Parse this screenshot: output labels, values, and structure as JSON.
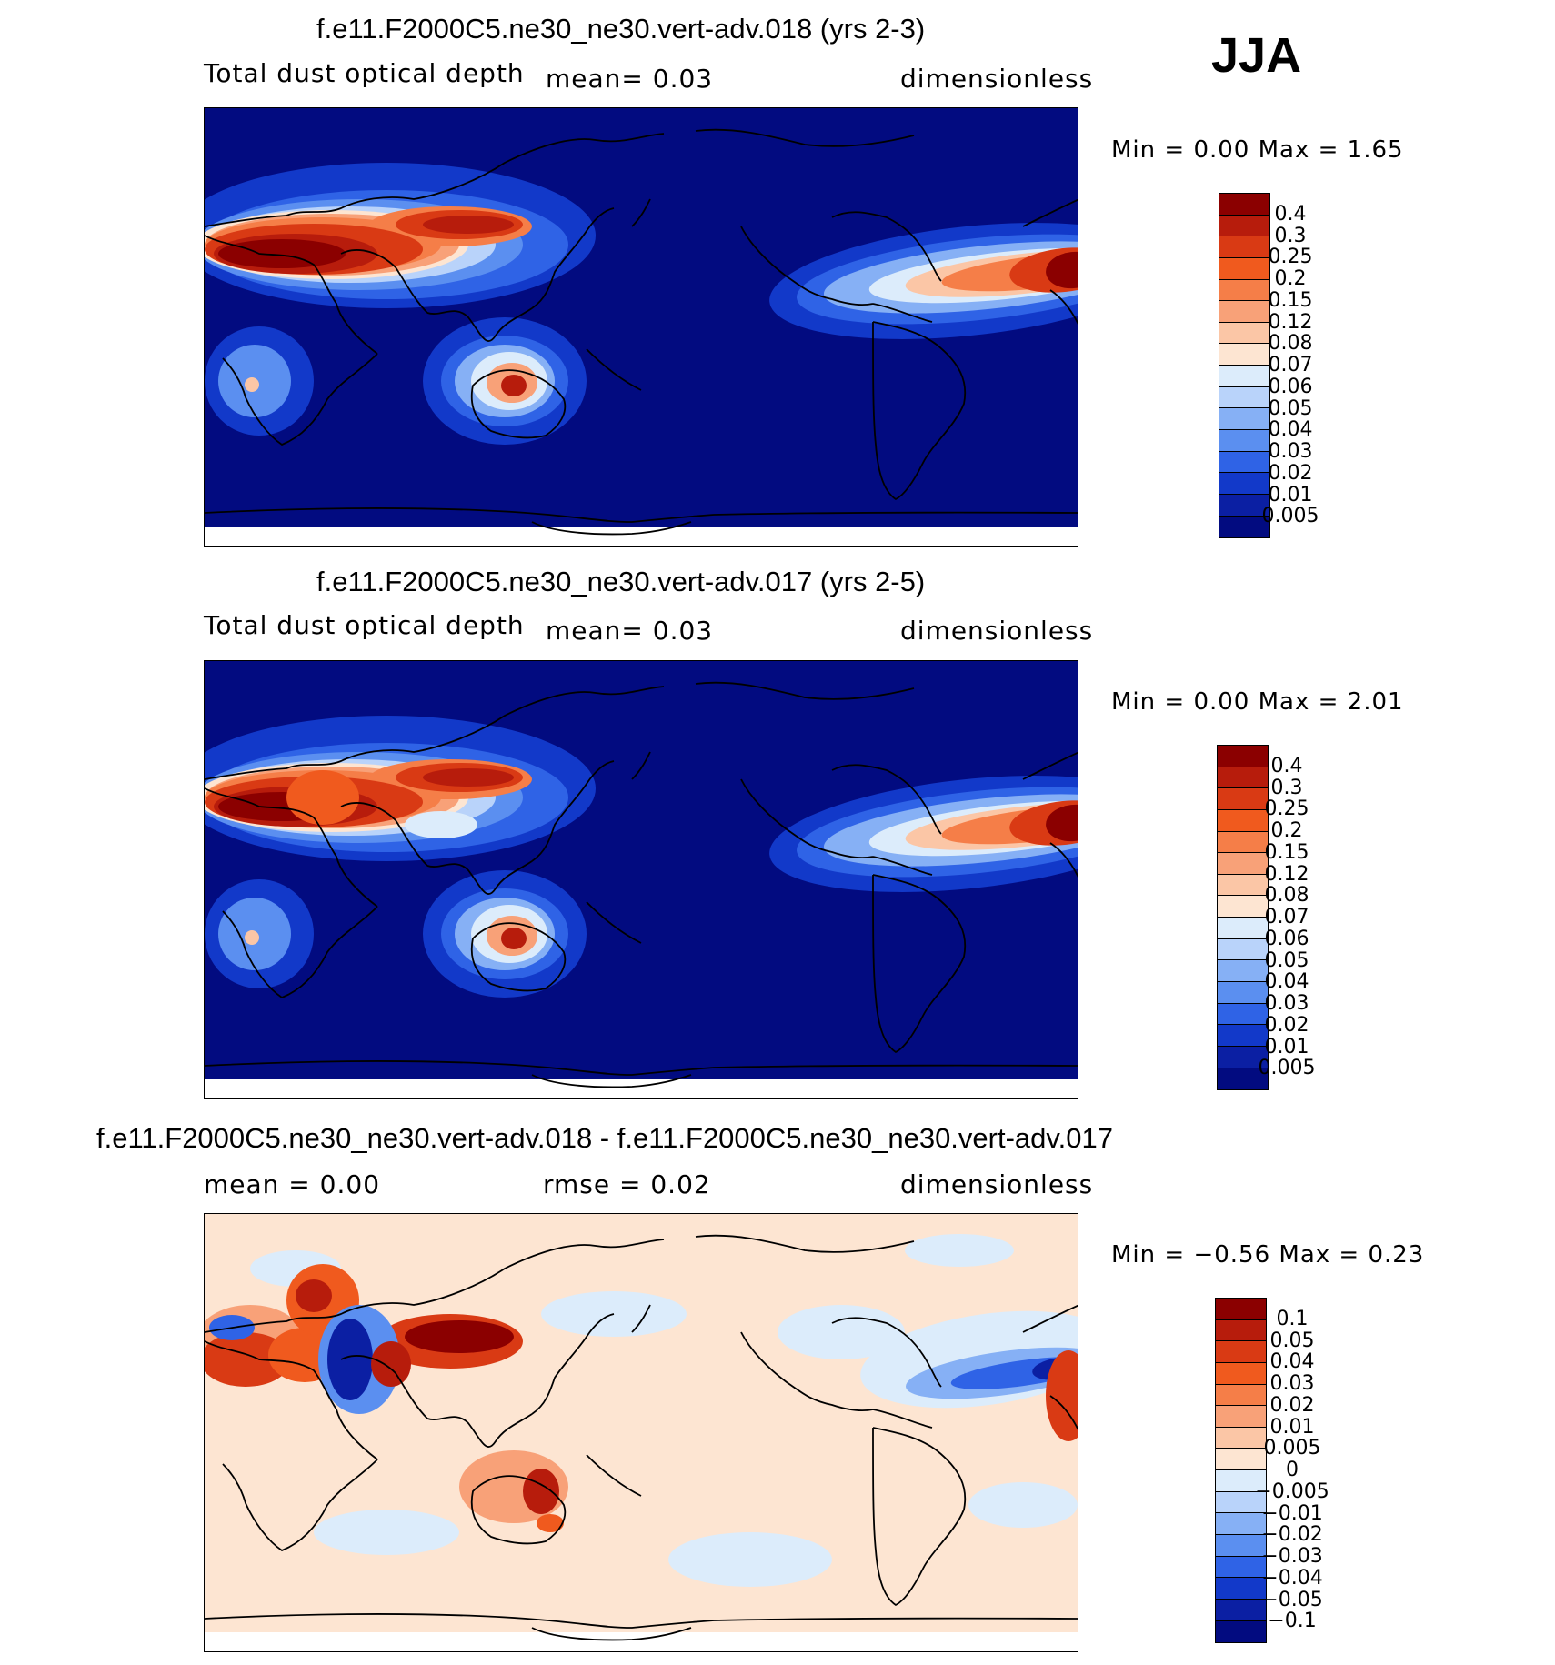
{
  "season": "JJA",
  "panels": [
    {
      "title": "f.e11.F2000C5.ne30_ne30.vert-adv.018 (yrs 2-3)",
      "left_text": "Total dust optical depth",
      "mid_text": "mean=    0.03",
      "right_text": "dimensionless",
      "minmax_text": "Min =    0.00  Max =    1.65",
      "colorbar_labels": [
        "0.4",
        "0.3",
        "0.25",
        "0.2",
        "0.15",
        "0.12",
        "0.08",
        "0.07",
        "0.06",
        "0.05",
        "0.04",
        "0.03",
        "0.02",
        "0.01",
        "0.005"
      ],
      "colorbar_colors": [
        "#8b0000",
        "#b71c0c",
        "#d93a14",
        "#f05a1e",
        "#f57e48",
        "#f8a178",
        "#fbc6a6",
        "#fde5d2",
        "#dcecfb",
        "#b9d3fa",
        "#86b0f5",
        "#5b8ff0",
        "#2f63e6",
        "#1239c9",
        "#0b1fa3",
        "#020b80"
      ],
      "map_style": "dust_a"
    },
    {
      "title": "f.e11.F2000C5.ne30_ne30.vert-adv.017 (yrs 2-5)",
      "left_text": "Total dust optical depth",
      "mid_text": "mean=    0.03",
      "right_text": "dimensionless",
      "minmax_text": "Min =    0.00  Max =    2.01",
      "colorbar_labels": [
        "0.4",
        "0.3",
        "0.25",
        "0.2",
        "0.15",
        "0.12",
        "0.08",
        "0.07",
        "0.06",
        "0.05",
        "0.04",
        "0.03",
        "0.02",
        "0.01",
        "0.005"
      ],
      "colorbar_colors": [
        "#8b0000",
        "#b71c0c",
        "#d93a14",
        "#f05a1e",
        "#f57e48",
        "#f8a178",
        "#fbc6a6",
        "#fde5d2",
        "#dcecfb",
        "#b9d3fa",
        "#86b0f5",
        "#5b8ff0",
        "#2f63e6",
        "#1239c9",
        "#0b1fa3",
        "#020b80"
      ],
      "map_style": "dust_b"
    },
    {
      "title": "f.e11.F2000C5.ne30_ne30.vert-adv.018 - f.e11.F2000C5.ne30_ne30.vert-adv.017",
      "left_text": "mean =    0.00",
      "mid_text": "rmse =    0.02",
      "right_text": "dimensionless",
      "minmax_text": "Min =  −0.56  Max =    0.23",
      "colorbar_labels": [
        "0.1",
        "0.05",
        "0.04",
        "0.03",
        "0.02",
        "0.01",
        "0.005",
        "0",
        "−0.005",
        "−0.01",
        "−0.02",
        "−0.03",
        "−0.04",
        "−0.05",
        "−0.1"
      ],
      "colorbar_colors": [
        "#8b0000",
        "#b71c0c",
        "#d93a14",
        "#f05a1e",
        "#f57e48",
        "#f8a178",
        "#fbc6a6",
        "#fde5d2",
        "#dcecfb",
        "#b9d3fa",
        "#86b0f5",
        "#5b8ff0",
        "#2f63e6",
        "#1239c9",
        "#0b1fa3",
        "#020b80"
      ],
      "map_style": "diff"
    }
  ]
}
